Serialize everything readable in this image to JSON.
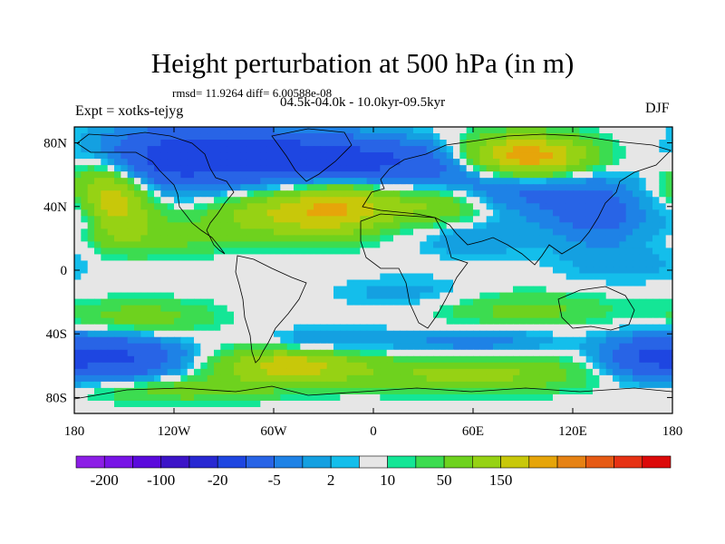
{
  "title": "Height perturbation at 500 hPa (in m)",
  "stats": "rmsd= 11.9264 diff= 6.00588e-08",
  "period": "04.5k-04.0k - 10.0kyr-09.5kyr",
  "experiment": "Expt = xotks-tejyg",
  "season": "DJF",
  "chart_data": {
    "type": "heatmap",
    "title": "Height perturbation at 500 hPa (in m)",
    "projection": "cylindrical equidistant",
    "xlim": [
      -180,
      180
    ],
    "ylim": [
      -90,
      90
    ],
    "x_ticks": [
      {
        "value": -180,
        "label": "180"
      },
      {
        "value": -120,
        "label": "120W"
      },
      {
        "value": -60,
        "label": "60W"
      },
      {
        "value": 0,
        "label": "0"
      },
      {
        "value": 60,
        "label": "60E"
      },
      {
        "value": 120,
        "label": "120E"
      },
      {
        "value": 180,
        "label": "180"
      }
    ],
    "y_ticks": [
      {
        "value": 80,
        "label": "80N"
      },
      {
        "value": 40,
        "label": "40N"
      },
      {
        "value": 0,
        "label": "0"
      },
      {
        "value": -40,
        "label": "40S"
      },
      {
        "value": -80,
        "label": "80S"
      }
    ],
    "colorbar": {
      "colors": [
        "#8c1ee6",
        "#7814e6",
        "#5a0adc",
        "#3c14c8",
        "#2828d2",
        "#1e46e1",
        "#2864e6",
        "#1e82e6",
        "#14a0e1",
        "#14beeb",
        "#e6e6e6",
        "#14e696",
        "#3cdc50",
        "#6ed21e",
        "#96d214",
        "#c8c80a",
        "#e6a50a",
        "#e68214",
        "#e65a14",
        "#e63214",
        "#dc0a0a"
      ],
      "labels": [
        {
          "after_box": 1,
          "text": "-200"
        },
        {
          "after_box": 3,
          "text": "-100"
        },
        {
          "after_box": 5,
          "text": "-20"
        },
        {
          "after_box": 7,
          "text": "-5"
        },
        {
          "after_box": 9,
          "text": "2"
        },
        {
          "after_box": 11,
          "text": "10"
        },
        {
          "after_box": 13,
          "text": "50"
        },
        {
          "after_box": 15,
          "text": "150"
        }
      ]
    },
    "anomaly_centers": [
      {
        "lon": -160,
        "lat": 45,
        "amp": 38,
        "sx": 18,
        "sy": 16
      },
      {
        "lon": -125,
        "lat": 70,
        "amp": -35,
        "sx": 30,
        "sy": 14
      },
      {
        "lon": -60,
        "lat": 72,
        "amp": -30,
        "sx": 35,
        "sy": 12
      },
      {
        "lon": 0,
        "lat": 68,
        "amp": -28,
        "sx": 40,
        "sy": 10
      },
      {
        "lon": 80,
        "lat": 55,
        "amp": -25,
        "sx": 40,
        "sy": 14
      },
      {
        "lon": 90,
        "lat": 70,
        "amp": 55,
        "sx": 28,
        "sy": 10
      },
      {
        "lon": -20,
        "lat": 40,
        "amp": 30,
        "sx": 22,
        "sy": 12
      },
      {
        "lon": 40,
        "lat": 42,
        "amp": 22,
        "sx": 25,
        "sy": 10
      },
      {
        "lon": -60,
        "lat": 35,
        "amp": 22,
        "sx": 28,
        "sy": 10
      },
      {
        "lon": -130,
        "lat": 20,
        "amp": 10,
        "sx": 30,
        "sy": 8
      },
      {
        "lon": -175,
        "lat": 35,
        "amp": -18,
        "sx": 12,
        "sy": 12
      },
      {
        "lon": 135,
        "lat": 35,
        "amp": -20,
        "sx": 20,
        "sy": 12
      },
      {
        "lon": 60,
        "lat": 20,
        "amp": -8,
        "sx": 25,
        "sy": 8
      },
      {
        "lon": 150,
        "lat": 5,
        "amp": -6,
        "sx": 30,
        "sy": 10
      },
      {
        "lon": 20,
        "lat": -15,
        "amp": -6,
        "sx": 30,
        "sy": 8
      },
      {
        "lon": -140,
        "lat": -30,
        "amp": 12,
        "sx": 30,
        "sy": 8
      },
      {
        "lon": 90,
        "lat": -25,
        "amp": 10,
        "sx": 40,
        "sy": 8
      },
      {
        "lon": -150,
        "lat": -55,
        "amp": -30,
        "sx": 25,
        "sy": 10
      },
      {
        "lon": 165,
        "lat": -55,
        "amp": -28,
        "sx": 20,
        "sy": 10
      },
      {
        "lon": -50,
        "lat": -60,
        "amp": 30,
        "sx": 30,
        "sy": 8
      },
      {
        "lon": 60,
        "lat": -65,
        "amp": 18,
        "sx": 50,
        "sy": 8
      },
      {
        "lon": -30,
        "lat": -45,
        "amp": -10,
        "sx": 25,
        "sy": 6
      },
      {
        "lon": 60,
        "lat": -45,
        "amp": -12,
        "sx": 35,
        "sy": 6
      },
      {
        "lon": -120,
        "lat": -75,
        "amp": 12,
        "sx": 40,
        "sy": 6
      }
    ]
  }
}
